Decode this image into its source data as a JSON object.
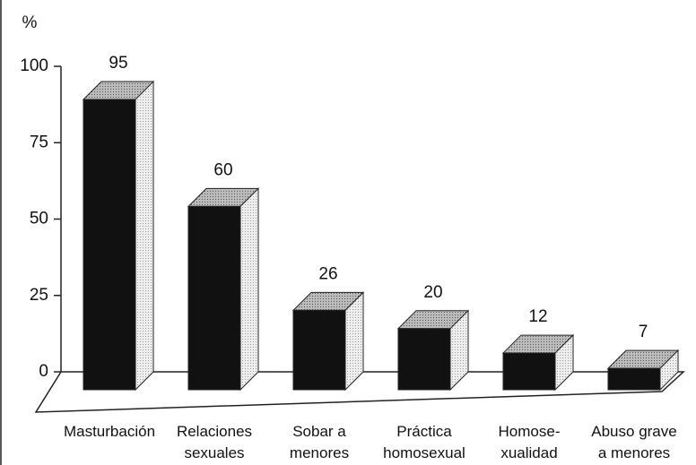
{
  "chart_data": {
    "type": "bar3d",
    "ylabel": "%",
    "categories": [
      "Masturbación",
      "Relaciones\nsexuales",
      "Sobar a\nmenores",
      "Práctica\nhomosexual",
      "Homose-\nxualidad",
      "Abuso grave\na menores"
    ],
    "values": [
      95,
      60,
      26,
      20,
      12,
      7
    ],
    "color": "#111111",
    "ylim": [
      0,
      100
    ],
    "yticks": [
      0,
      25,
      50,
      75,
      100
    ]
  }
}
